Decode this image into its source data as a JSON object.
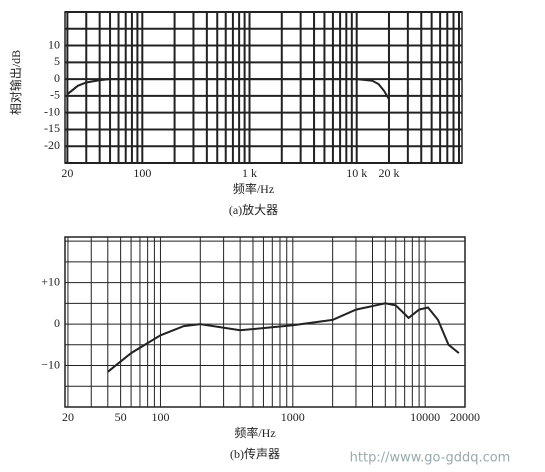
{
  "chart_data": [
    {
      "type": "line",
      "ylabel": "相对输出/dB",
      "xlabel": "频率/Hz",
      "caption": "(a)放大器",
      "xscale": "log",
      "xlim": [
        19,
        96000
      ],
      "ylim": [
        -25,
        20
      ],
      "xticks": [
        20,
        100,
        {
          "value": 1000,
          "label": "1 k"
        },
        {
          "value": 10000,
          "label": "10 k"
        },
        {
          "value": 20000,
          "label": "20 k"
        }
      ],
      "yticks": [
        10,
        5,
        0,
        -5,
        -10,
        -15,
        -20
      ],
      "xgrid": [
        20,
        30,
        40,
        50,
        60,
        70,
        80,
        90,
        100,
        200,
        300,
        400,
        500,
        600,
        700,
        800,
        900,
        1000,
        2000,
        3000,
        4000,
        5000,
        6000,
        7000,
        8000,
        9000,
        10000,
        20000,
        30000,
        40000,
        50000,
        60000,
        70000,
        80000,
        90000
      ],
      "ygrid": [
        -25,
        -20,
        -15,
        -10,
        -5,
        0,
        5,
        10,
        15,
        20
      ],
      "x": [
        20,
        25,
        30,
        40,
        50,
        100,
        1000,
        10000,
        14000,
        16000,
        18000,
        20000
      ],
      "values": [
        -4.5,
        -2,
        -1,
        -0.3,
        0,
        0,
        0,
        0,
        -0.5,
        -1.5,
        -3.5,
        -6
      ],
      "color": "#222222"
    },
    {
      "type": "line",
      "xlabel": "频率/Hz",
      "caption": "(b)传声器",
      "xscale": "log",
      "xlim": [
        19,
        20000
      ],
      "ylim": [
        -20,
        21
      ],
      "xticks": [
        20,
        50,
        100,
        1000,
        10000,
        20000
      ],
      "yticks": [
        {
          "value": 10,
          "label": "+10"
        },
        0,
        {
          "value": -10,
          "label": "−10"
        }
      ],
      "xgrid": [
        20,
        30,
        40,
        50,
        60,
        70,
        80,
        90,
        100,
        200,
        300,
        400,
        500,
        600,
        700,
        800,
        900,
        1000,
        2000,
        3000,
        4000,
        5000,
        6000,
        7000,
        8000,
        9000,
        10000,
        20000
      ],
      "ygrid": [
        -20,
        -15,
        -10,
        -5,
        0,
        5,
        10,
        15,
        20
      ],
      "x": [
        40,
        60,
        100,
        150,
        200,
        400,
        1000,
        2000,
        3000,
        5000,
        6000,
        7500,
        9000,
        10500,
        12500,
        15000,
        18000
      ],
      "values": [
        -11.5,
        -7,
        -2.7,
        -0.5,
        0,
        -1.5,
        -0.3,
        1,
        3.5,
        5,
        4.5,
        1.5,
        3.5,
        4,
        1,
        -5,
        -7
      ],
      "color": "#222222"
    }
  ],
  "watermark": "http://www.go-gddq.com"
}
